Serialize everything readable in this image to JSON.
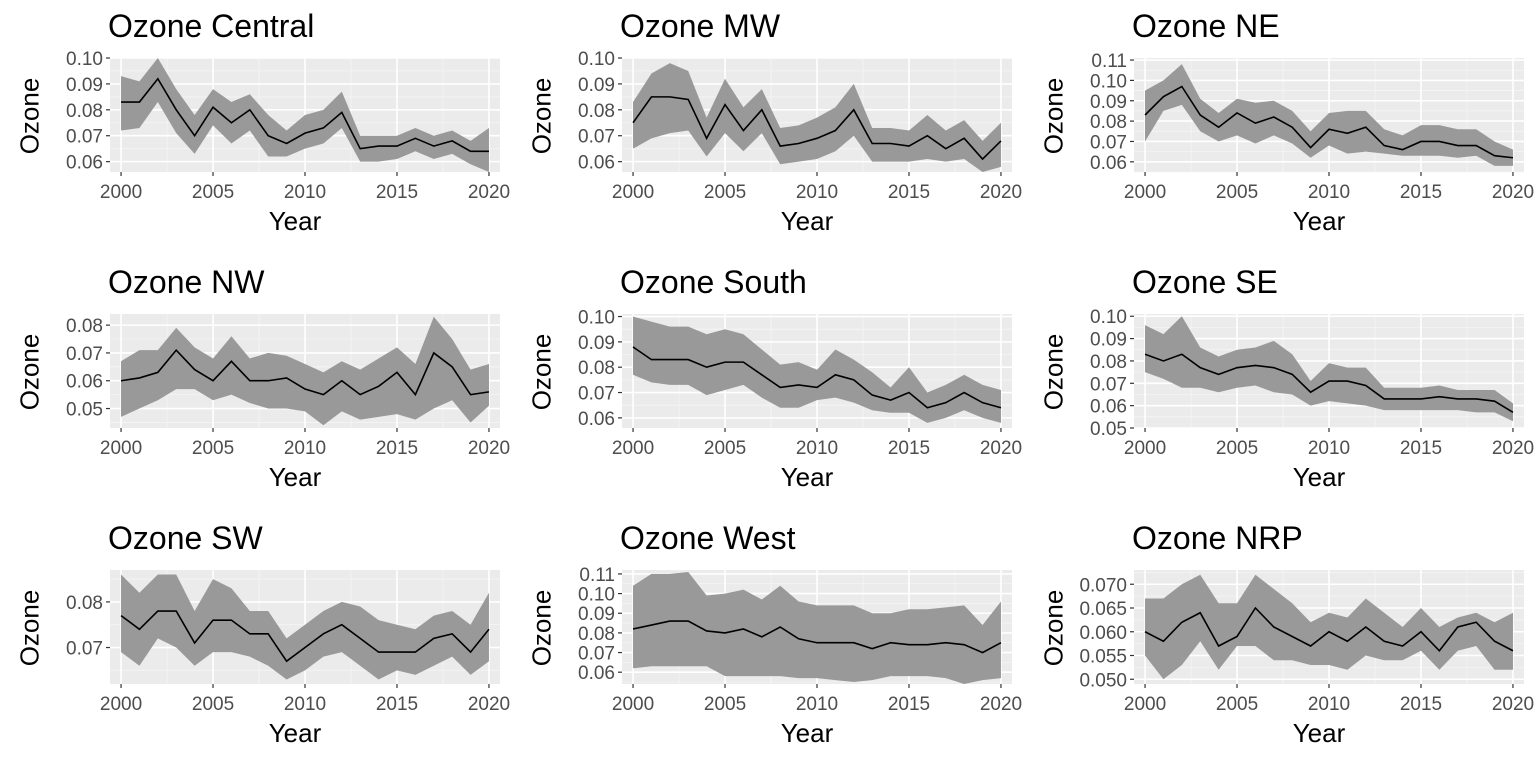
{
  "chart_data": [
    {
      "type": "line",
      "title": "Ozone Central",
      "xlabel": "Year",
      "ylabel": "Ozone",
      "xlim": [
        2000,
        2020
      ],
      "ylim": [
        0.056,
        0.1
      ],
      "yticks": [
        0.06,
        0.07,
        0.08,
        0.09,
        0.1
      ],
      "ytick_decimals": 2,
      "x": [
        2000,
        2001,
        2002,
        2003,
        2004,
        2005,
        2006,
        2007,
        2008,
        2009,
        2010,
        2011,
        2012,
        2013,
        2014,
        2015,
        2016,
        2017,
        2018,
        2019,
        2020
      ],
      "series": [
        {
          "values": [
            0.083,
            0.083,
            0.092,
            0.08,
            0.07,
            0.081,
            0.075,
            0.08,
            0.07,
            0.067,
            0.071,
            0.073,
            0.079,
            0.065,
            0.066,
            0.066,
            0.069,
            0.066,
            0.068,
            0.064,
            0.064
          ]
        }
      ],
      "band": {
        "lower": [
          0.072,
          0.073,
          0.083,
          0.071,
          0.063,
          0.074,
          0.067,
          0.072,
          0.062,
          0.062,
          0.065,
          0.067,
          0.073,
          0.06,
          0.06,
          0.061,
          0.064,
          0.061,
          0.063,
          0.059,
          0.056
        ],
        "upper": [
          0.093,
          0.091,
          0.1,
          0.088,
          0.078,
          0.088,
          0.083,
          0.086,
          0.078,
          0.072,
          0.078,
          0.08,
          0.087,
          0.07,
          0.07,
          0.07,
          0.073,
          0.07,
          0.072,
          0.068,
          0.073
        ]
      }
    },
    {
      "type": "line",
      "title": "Ozone MW",
      "xlabel": "Year",
      "ylabel": "Ozone",
      "xlim": [
        2000,
        2020
      ],
      "ylim": [
        0.056,
        0.1
      ],
      "yticks": [
        0.06,
        0.07,
        0.08,
        0.09,
        0.1
      ],
      "ytick_decimals": 2,
      "x": [
        2000,
        2001,
        2002,
        2003,
        2004,
        2005,
        2006,
        2007,
        2008,
        2009,
        2010,
        2011,
        2012,
        2013,
        2014,
        2015,
        2016,
        2017,
        2018,
        2019,
        2020
      ],
      "series": [
        {
          "values": [
            0.075,
            0.085,
            0.085,
            0.084,
            0.069,
            0.082,
            0.072,
            0.08,
            0.066,
            0.067,
            0.069,
            0.072,
            0.08,
            0.067,
            0.067,
            0.066,
            0.07,
            0.065,
            0.069,
            0.061,
            0.068
          ]
        }
      ],
      "band": {
        "lower": [
          0.065,
          0.069,
          0.071,
          0.072,
          0.062,
          0.071,
          0.064,
          0.071,
          0.059,
          0.06,
          0.061,
          0.064,
          0.07,
          0.06,
          0.06,
          0.06,
          0.061,
          0.06,
          0.061,
          0.056,
          0.058
        ],
        "upper": [
          0.083,
          0.094,
          0.098,
          0.095,
          0.077,
          0.092,
          0.081,
          0.088,
          0.073,
          0.074,
          0.077,
          0.081,
          0.09,
          0.073,
          0.073,
          0.072,
          0.078,
          0.072,
          0.076,
          0.068,
          0.075
        ]
      }
    },
    {
      "type": "line",
      "title": "Ozone NE",
      "xlabel": "Year",
      "ylabel": "Ozone",
      "xlim": [
        2000,
        2020
      ],
      "ylim": [
        0.055,
        0.111
      ],
      "yticks": [
        0.06,
        0.07,
        0.08,
        0.09,
        0.1,
        0.11
      ],
      "ytick_decimals": 2,
      "x": [
        2000,
        2001,
        2002,
        2003,
        2004,
        2005,
        2006,
        2007,
        2008,
        2009,
        2010,
        2011,
        2012,
        2013,
        2014,
        2015,
        2016,
        2017,
        2018,
        2019,
        2020
      ],
      "series": [
        {
          "values": [
            0.083,
            0.092,
            0.097,
            0.083,
            0.077,
            0.084,
            0.079,
            0.082,
            0.077,
            0.067,
            0.076,
            0.074,
            0.077,
            0.068,
            0.066,
            0.07,
            0.07,
            0.068,
            0.068,
            0.063,
            0.062
          ]
        }
      ],
      "band": {
        "lower": [
          0.07,
          0.085,
          0.088,
          0.075,
          0.07,
          0.073,
          0.069,
          0.073,
          0.069,
          0.062,
          0.068,
          0.064,
          0.065,
          0.064,
          0.063,
          0.063,
          0.063,
          0.062,
          0.063,
          0.058,
          0.058
        ],
        "upper": [
          0.095,
          0.1,
          0.108,
          0.091,
          0.084,
          0.091,
          0.089,
          0.09,
          0.085,
          0.075,
          0.084,
          0.085,
          0.085,
          0.076,
          0.073,
          0.078,
          0.078,
          0.076,
          0.076,
          0.07,
          0.066
        ]
      }
    },
    {
      "type": "line",
      "title": "Ozone NW",
      "xlabel": "Year",
      "ylabel": "Ozone",
      "xlim": [
        2000,
        2020
      ],
      "ylim": [
        0.043,
        0.084
      ],
      "yticks": [
        0.05,
        0.06,
        0.07,
        0.08
      ],
      "ytick_decimals": 2,
      "x": [
        2000,
        2001,
        2002,
        2003,
        2004,
        2005,
        2006,
        2007,
        2008,
        2009,
        2010,
        2011,
        2012,
        2013,
        2014,
        2015,
        2016,
        2017,
        2018,
        2019,
        2020
      ],
      "series": [
        {
          "values": [
            0.06,
            0.061,
            0.063,
            0.071,
            0.064,
            0.06,
            0.067,
            0.06,
            0.06,
            0.061,
            0.057,
            0.055,
            0.06,
            0.055,
            0.058,
            0.063,
            0.055,
            0.07,
            0.065,
            0.055,
            0.056
          ]
        }
      ],
      "band": {
        "lower": [
          0.047,
          0.05,
          0.053,
          0.057,
          0.057,
          0.053,
          0.055,
          0.052,
          0.05,
          0.05,
          0.049,
          0.044,
          0.049,
          0.046,
          0.047,
          0.048,
          0.046,
          0.05,
          0.053,
          0.045,
          0.051
        ],
        "upper": [
          0.067,
          0.071,
          0.071,
          0.079,
          0.072,
          0.068,
          0.076,
          0.068,
          0.07,
          0.069,
          0.066,
          0.063,
          0.067,
          0.064,
          0.068,
          0.072,
          0.066,
          0.083,
          0.075,
          0.064,
          0.066
        ]
      }
    },
    {
      "type": "line",
      "title": "Ozone South",
      "xlabel": "Year",
      "ylabel": "Ozone",
      "xlim": [
        2000,
        2020
      ],
      "ylim": [
        0.056,
        0.101
      ],
      "yticks": [
        0.06,
        0.07,
        0.08,
        0.09,
        0.1
      ],
      "ytick_decimals": 2,
      "x": [
        2000,
        2001,
        2002,
        2003,
        2004,
        2005,
        2006,
        2007,
        2008,
        2009,
        2010,
        2011,
        2012,
        2013,
        2014,
        2015,
        2016,
        2017,
        2018,
        2019,
        2020
      ],
      "series": [
        {
          "values": [
            0.088,
            0.083,
            0.083,
            0.083,
            0.08,
            0.082,
            0.082,
            0.077,
            0.072,
            0.073,
            0.072,
            0.077,
            0.075,
            0.069,
            0.067,
            0.07,
            0.064,
            0.066,
            0.07,
            0.066,
            0.064
          ]
        }
      ],
      "band": {
        "lower": [
          0.077,
          0.074,
          0.073,
          0.073,
          0.069,
          0.071,
          0.073,
          0.068,
          0.064,
          0.064,
          0.067,
          0.068,
          0.066,
          0.063,
          0.062,
          0.062,
          0.058,
          0.06,
          0.063,
          0.06,
          0.058
        ],
        "upper": [
          0.1,
          0.098,
          0.096,
          0.096,
          0.093,
          0.095,
          0.093,
          0.087,
          0.081,
          0.082,
          0.079,
          0.087,
          0.083,
          0.078,
          0.072,
          0.08,
          0.07,
          0.073,
          0.077,
          0.073,
          0.071
        ]
      }
    },
    {
      "type": "line",
      "title": "Ozone SE",
      "xlabel": "Year",
      "ylabel": "Ozone",
      "xlim": [
        2000,
        2020
      ],
      "ylim": [
        0.05,
        0.101
      ],
      "yticks": [
        0.05,
        0.06,
        0.07,
        0.08,
        0.09,
        0.1
      ],
      "ytick_decimals": 2,
      "x": [
        2000,
        2001,
        2002,
        2003,
        2004,
        2005,
        2006,
        2007,
        2008,
        2009,
        2010,
        2011,
        2012,
        2013,
        2014,
        2015,
        2016,
        2017,
        2018,
        2019,
        2020
      ],
      "series": [
        {
          "values": [
            0.083,
            0.08,
            0.083,
            0.077,
            0.074,
            0.077,
            0.078,
            0.077,
            0.074,
            0.066,
            0.071,
            0.071,
            0.069,
            0.063,
            0.063,
            0.063,
            0.064,
            0.063,
            0.063,
            0.062,
            0.057
          ]
        }
      ],
      "band": {
        "lower": [
          0.075,
          0.072,
          0.068,
          0.068,
          0.066,
          0.068,
          0.069,
          0.066,
          0.065,
          0.06,
          0.062,
          0.061,
          0.06,
          0.058,
          0.058,
          0.058,
          0.058,
          0.058,
          0.057,
          0.057,
          0.053
        ],
        "upper": [
          0.096,
          0.092,
          0.1,
          0.086,
          0.082,
          0.085,
          0.086,
          0.089,
          0.083,
          0.071,
          0.079,
          0.077,
          0.077,
          0.068,
          0.068,
          0.068,
          0.069,
          0.067,
          0.067,
          0.067,
          0.061
        ]
      }
    },
    {
      "type": "line",
      "title": "Ozone SW",
      "xlabel": "Year",
      "ylabel": "Ozone",
      "xlim": [
        2000,
        2020
      ],
      "ylim": [
        0.062,
        0.087
      ],
      "yticks": [
        0.07,
        0.08
      ],
      "ytick_decimals": 2,
      "x": [
        2000,
        2001,
        2002,
        2003,
        2004,
        2005,
        2006,
        2007,
        2008,
        2009,
        2010,
        2011,
        2012,
        2013,
        2014,
        2015,
        2016,
        2017,
        2018,
        2019,
        2020
      ],
      "series": [
        {
          "values": [
            0.077,
            0.074,
            0.078,
            0.078,
            0.071,
            0.076,
            0.076,
            0.073,
            0.073,
            0.067,
            0.07,
            0.073,
            0.075,
            0.072,
            0.069,
            0.069,
            0.069,
            0.072,
            0.073,
            0.069,
            0.074
          ]
        }
      ],
      "band": {
        "lower": [
          0.069,
          0.066,
          0.072,
          0.07,
          0.066,
          0.069,
          0.069,
          0.068,
          0.066,
          0.063,
          0.065,
          0.068,
          0.069,
          0.066,
          0.063,
          0.065,
          0.064,
          0.066,
          0.068,
          0.064,
          0.067
        ],
        "upper": [
          0.086,
          0.082,
          0.086,
          0.086,
          0.078,
          0.085,
          0.083,
          0.078,
          0.078,
          0.072,
          0.075,
          0.078,
          0.08,
          0.079,
          0.076,
          0.075,
          0.074,
          0.077,
          0.078,
          0.075,
          0.082
        ]
      }
    },
    {
      "type": "line",
      "title": "Ozone West",
      "xlabel": "Year",
      "ylabel": "Ozone",
      "xlim": [
        2000,
        2020
      ],
      "ylim": [
        0.054,
        0.112
      ],
      "yticks": [
        0.06,
        0.07,
        0.08,
        0.09,
        0.1,
        0.11
      ],
      "ytick_decimals": 2,
      "x": [
        2000,
        2001,
        2002,
        2003,
        2004,
        2005,
        2006,
        2007,
        2008,
        2009,
        2010,
        2011,
        2012,
        2013,
        2014,
        2015,
        2016,
        2017,
        2018,
        2019,
        2020
      ],
      "series": [
        {
          "values": [
            0.082,
            0.084,
            0.086,
            0.086,
            0.081,
            0.08,
            0.082,
            0.078,
            0.083,
            0.077,
            0.075,
            0.075,
            0.075,
            0.072,
            0.075,
            0.074,
            0.074,
            0.075,
            0.074,
            0.07,
            0.075
          ]
        }
      ],
      "band": {
        "lower": [
          0.062,
          0.063,
          0.063,
          0.063,
          0.063,
          0.058,
          0.058,
          0.058,
          0.058,
          0.057,
          0.057,
          0.056,
          0.055,
          0.056,
          0.058,
          0.058,
          0.058,
          0.057,
          0.054,
          0.056,
          0.057
        ],
        "upper": [
          0.104,
          0.11,
          0.11,
          0.111,
          0.099,
          0.1,
          0.102,
          0.097,
          0.104,
          0.096,
          0.094,
          0.094,
          0.094,
          0.09,
          0.09,
          0.092,
          0.092,
          0.093,
          0.094,
          0.084,
          0.096
        ]
      }
    },
    {
      "type": "line",
      "title": "Ozone NRP",
      "xlabel": "Year",
      "ylabel": "Ozone",
      "xlim": [
        2000,
        2020
      ],
      "ylim": [
        0.049,
        0.073
      ],
      "yticks": [
        0.05,
        0.055,
        0.06,
        0.065,
        0.07
      ],
      "ytick_decimals": 3,
      "x": [
        2000,
        2001,
        2002,
        2003,
        2004,
        2005,
        2006,
        2007,
        2008,
        2009,
        2010,
        2011,
        2012,
        2013,
        2014,
        2015,
        2016,
        2017,
        2018,
        2019,
        2020
      ],
      "series": [
        {
          "values": [
            0.06,
            0.058,
            0.062,
            0.064,
            0.057,
            0.059,
            0.065,
            0.061,
            0.059,
            0.057,
            0.06,
            0.058,
            0.061,
            0.058,
            0.057,
            0.06,
            0.056,
            0.061,
            0.062,
            0.058,
            0.056
          ]
        }
      ],
      "band": {
        "lower": [
          0.055,
          0.05,
          0.053,
          0.058,
          0.052,
          0.057,
          0.057,
          0.054,
          0.054,
          0.053,
          0.053,
          0.052,
          0.055,
          0.054,
          0.054,
          0.056,
          0.052,
          0.056,
          0.057,
          0.052,
          0.052
        ],
        "upper": [
          0.067,
          0.067,
          0.07,
          0.072,
          0.066,
          0.066,
          0.072,
          0.069,
          0.066,
          0.062,
          0.064,
          0.063,
          0.067,
          0.064,
          0.061,
          0.065,
          0.061,
          0.063,
          0.064,
          0.062,
          0.064
        ]
      }
    }
  ]
}
